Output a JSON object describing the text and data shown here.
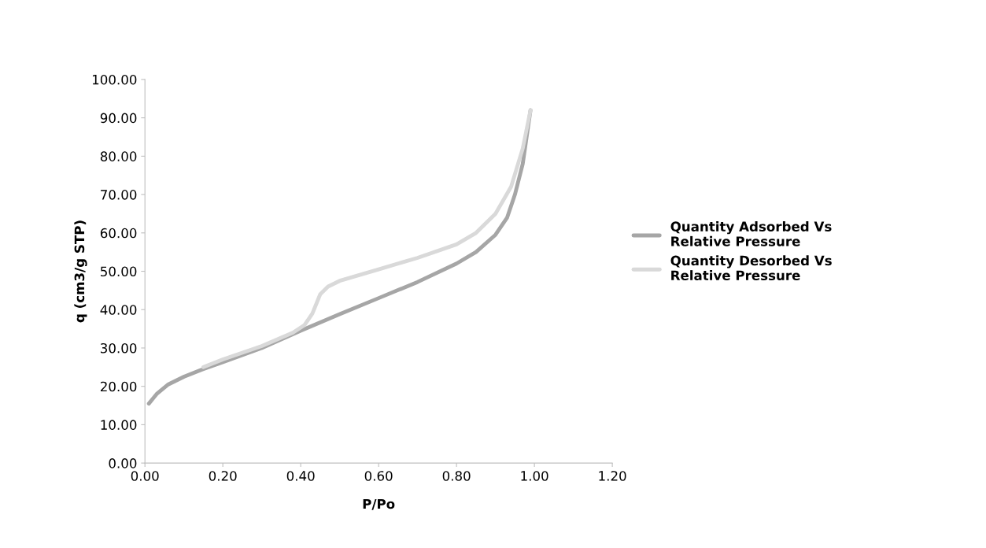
{
  "chart_data": {
    "type": "line",
    "xlabel": "P/Po",
    "ylabel": "q (cm3/g STP)",
    "xlim": [
      0,
      1.2
    ],
    "xticks": [
      {
        "value": 0,
        "label": "0.00"
      },
      {
        "value": 0.2,
        "label": "0.20"
      },
      {
        "value": 0.4,
        "label": "0.40"
      },
      {
        "value": 0.6,
        "label": "0.60"
      },
      {
        "value": 0.8,
        "label": "0.80"
      },
      {
        "value": 1.0,
        "label": "1.00"
      },
      {
        "value": 1.2,
        "label": "1.20"
      }
    ],
    "ylim": [
      0,
      100
    ],
    "yticks": [
      {
        "value": 0,
        "label": "0.00"
      },
      {
        "value": 10,
        "label": "10.00"
      },
      {
        "value": 20,
        "label": "20.00"
      },
      {
        "value": 30,
        "label": "30.00"
      },
      {
        "value": 40,
        "label": "40.00"
      },
      {
        "value": 50,
        "label": "50.00"
      },
      {
        "value": 60,
        "label": "60.00"
      },
      {
        "value": 70,
        "label": "70.00"
      },
      {
        "value": 80,
        "label": "80.00"
      },
      {
        "value": 90,
        "label": "90.00"
      },
      {
        "value": 100,
        "label": "100.00"
      }
    ],
    "grid": false,
    "legend": "right",
    "marker": "none",
    "line_style": "solid",
    "series": [
      {
        "name": "Quantity Adsorbed Vs Relative Pressure",
        "color": "#a6a6a6",
        "x": [
          0.01,
          0.03,
          0.06,
          0.1,
          0.15,
          0.2,
          0.3,
          0.4,
          0.5,
          0.6,
          0.7,
          0.8,
          0.85,
          0.9,
          0.93,
          0.95,
          0.97,
          0.99
        ],
        "values": [
          15.5,
          18,
          20.5,
          22.5,
          24.5,
          26.3,
          30,
          34.5,
          38.8,
          43,
          47.2,
          52,
          55,
          59.5,
          64,
          70,
          78,
          92
        ]
      },
      {
        "name": "Quantity Desorbed Vs Relative Pressure",
        "color": "#d9d9d9",
        "x": [
          0.99,
          0.97,
          0.94,
          0.9,
          0.85,
          0.8,
          0.7,
          0.6,
          0.55,
          0.5,
          0.47,
          0.45,
          0.43,
          0.41,
          0.38,
          0.3,
          0.2,
          0.15
        ],
        "values": [
          92,
          82,
          72,
          65,
          60,
          57,
          53.5,
          50.5,
          49,
          47.5,
          46,
          44,
          39,
          36,
          34,
          30.5,
          27,
          25
        ]
      }
    ]
  }
}
